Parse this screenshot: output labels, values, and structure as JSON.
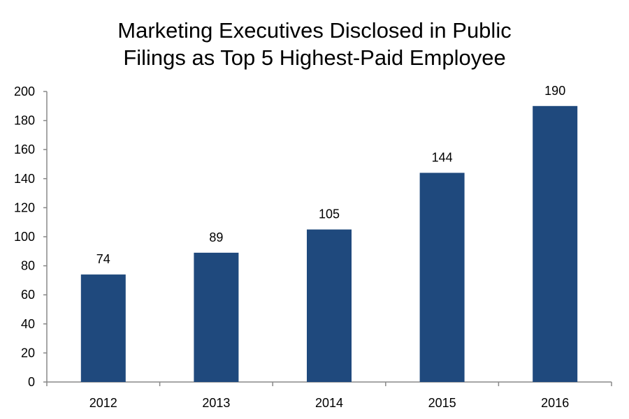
{
  "chart_data": {
    "type": "bar",
    "title_lines": [
      "Marketing Executives Disclosed in Public",
      "Filings as Top 5 Highest-Paid Employee"
    ],
    "categories": [
      "2012",
      "2013",
      "2014",
      "2015",
      "2016"
    ],
    "values": [
      74,
      89,
      105,
      144,
      190
    ],
    "data_labels": [
      "74",
      "89",
      "105",
      "144",
      "190"
    ],
    "ylim": [
      0,
      200
    ],
    "yticks": [
      0,
      20,
      40,
      60,
      80,
      100,
      120,
      140,
      160,
      180,
      200
    ],
    "xlabel": "",
    "ylabel": "",
    "grid": false,
    "legend": "none",
    "bar_color": "#1F497D",
    "axis_color": "#888888"
  }
}
